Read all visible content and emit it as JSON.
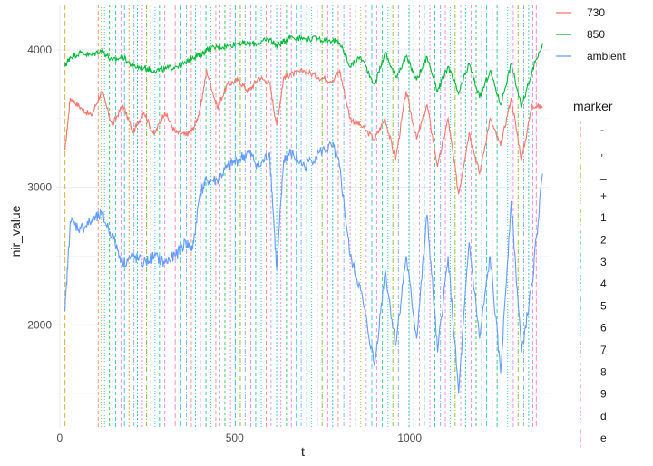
{
  "chart_data": {
    "type": "line",
    "title": "",
    "xlabel": "t",
    "ylabel": "nir_value",
    "xlim": [
      -10,
      1400
    ],
    "ylim": [
      1250,
      4330
    ],
    "x_ticks": [
      0,
      500,
      1000
    ],
    "x_tick_labels": [
      "0",
      "500",
      "1000"
    ],
    "y_ticks": [
      2000,
      3000,
      4000
    ],
    "y_tick_labels": [
      "2000",
      "3000",
      "4000"
    ],
    "grid": true,
    "legend_position": "right",
    "series": [
      {
        "name": "730",
        "color": "#F8766D",
        "x": [
          15,
          30,
          60,
          90,
          120,
          150,
          180,
          210,
          240,
          270,
          300,
          330,
          360,
          380,
          400,
          420,
          450,
          480,
          510,
          540,
          570,
          600,
          620,
          640,
          660,
          700,
          740,
          780,
          800,
          830,
          860,
          900,
          930,
          960,
          990,
          1020,
          1050,
          1080,
          1110,
          1140,
          1170,
          1200,
          1230,
          1260,
          1290,
          1320,
          1350,
          1380
        ],
        "values": [
          3270,
          3650,
          3580,
          3520,
          3700,
          3450,
          3600,
          3400,
          3550,
          3380,
          3550,
          3400,
          3380,
          3420,
          3550,
          3850,
          3580,
          3750,
          3780,
          3700,
          3800,
          3760,
          3450,
          3800,
          3820,
          3850,
          3800,
          3780,
          3850,
          3500,
          3450,
          3350,
          3500,
          3200,
          3700,
          3350,
          3600,
          3150,
          3500,
          2950,
          3400,
          3100,
          3500,
          3300,
          3650,
          3200,
          3600,
          3580
        ]
      },
      {
        "name": "850",
        "color": "#00BA38",
        "x": [
          15,
          30,
          60,
          90,
          120,
          150,
          180,
          210,
          240,
          270,
          300,
          330,
          360,
          380,
          400,
          420,
          450,
          480,
          510,
          540,
          570,
          600,
          620,
          640,
          660,
          700,
          740,
          780,
          800,
          830,
          860,
          900,
          930,
          960,
          990,
          1020,
          1050,
          1080,
          1110,
          1140,
          1170,
          1200,
          1230,
          1260,
          1290,
          1320,
          1350,
          1380
        ],
        "values": [
          3880,
          3950,
          3980,
          3960,
          4000,
          3920,
          3950,
          3880,
          3870,
          3850,
          3860,
          3880,
          3900,
          3950,
          3960,
          4000,
          4020,
          4030,
          4050,
          4040,
          4050,
          4080,
          4030,
          4060,
          4100,
          4080,
          4080,
          4070,
          4050,
          3880,
          3950,
          3750,
          3980,
          3800,
          3950,
          3780,
          3950,
          3700,
          3880,
          3680,
          3900,
          3650,
          3850,
          3600,
          3900,
          3580,
          3850,
          4050
        ]
      },
      {
        "name": "ambient",
        "color": "#619CFF",
        "x": [
          15,
          30,
          60,
          90,
          120,
          150,
          180,
          210,
          240,
          270,
          300,
          330,
          360,
          380,
          400,
          420,
          450,
          480,
          510,
          540,
          570,
          600,
          620,
          640,
          660,
          700,
          740,
          780,
          800,
          830,
          860,
          900,
          930,
          960,
          990,
          1020,
          1050,
          1080,
          1110,
          1140,
          1170,
          1200,
          1230,
          1260,
          1290,
          1320,
          1350,
          1380
        ],
        "values": [
          2100,
          2750,
          2700,
          2750,
          2800,
          2650,
          2450,
          2500,
          2450,
          2500,
          2450,
          2500,
          2600,
          2550,
          2950,
          3050,
          3050,
          3150,
          3200,
          3250,
          3150,
          3250,
          2400,
          3200,
          3250,
          3150,
          3250,
          3300,
          3150,
          2500,
          2250,
          1700,
          2400,
          1850,
          2500,
          1900,
          2800,
          1800,
          2500,
          1500,
          2600,
          1900,
          2500,
          1650,
          2900,
          1800,
          2300,
          3100
        ]
      }
    ],
    "markers": {
      "legend_title": "marker",
      "labels": [
        "-",
        ",",
        "_",
        "+",
        "1",
        "2",
        "3",
        "4",
        "5",
        "6",
        "7",
        "8",
        "9",
        "d",
        "e"
      ],
      "colors": [
        "#F8766D",
        "#E58700",
        "#C99800",
        "#A3A500",
        "#6BB100",
        "#00BA38",
        "#00BF7D",
        "#00C0AF",
        "#00BCD8",
        "#00B0F6",
        "#619CFF",
        "#B983FF",
        "#E76BF3",
        "#FD61D1",
        "#FF67A4"
      ],
      "events": [
        {
          "t": 15,
          "m": 2
        },
        {
          "t": 110,
          "m": 0
        },
        {
          "t": 118,
          "m": 3
        },
        {
          "t": 128,
          "m": 9
        },
        {
          "t": 142,
          "m": 5
        },
        {
          "t": 150,
          "m": 11
        },
        {
          "t": 160,
          "m": 6
        },
        {
          "t": 175,
          "m": 12
        },
        {
          "t": 185,
          "m": 8
        },
        {
          "t": 198,
          "m": 1
        },
        {
          "t": 212,
          "m": 10
        },
        {
          "t": 222,
          "m": 7
        },
        {
          "t": 236,
          "m": 13
        },
        {
          "t": 248,
          "m": 4
        },
        {
          "t": 260,
          "m": 11
        },
        {
          "t": 272,
          "m": 9
        },
        {
          "t": 285,
          "m": 6
        },
        {
          "t": 300,
          "m": 12
        },
        {
          "t": 318,
          "m": 5
        },
        {
          "t": 330,
          "m": 14
        },
        {
          "t": 346,
          "m": 8
        },
        {
          "t": 362,
          "m": 10
        },
        {
          "t": 376,
          "m": 0
        },
        {
          "t": 388,
          "m": 7
        },
        {
          "t": 402,
          "m": 12
        },
        {
          "t": 418,
          "m": 6
        },
        {
          "t": 432,
          "m": 9
        },
        {
          "t": 446,
          "m": 0
        },
        {
          "t": 458,
          "m": 11
        },
        {
          "t": 472,
          "m": 5
        },
        {
          "t": 488,
          "m": 13
        },
        {
          "t": 502,
          "m": 8
        },
        {
          "t": 516,
          "m": 4
        },
        {
          "t": 530,
          "m": 10
        },
        {
          "t": 546,
          "m": 12
        },
        {
          "t": 560,
          "m": 6
        },
        {
          "t": 576,
          "m": 9
        },
        {
          "t": 590,
          "m": 0
        },
        {
          "t": 604,
          "m": 11
        },
        {
          "t": 620,
          "m": 7
        },
        {
          "t": 632,
          "m": 13
        },
        {
          "t": 648,
          "m": 5
        },
        {
          "t": 662,
          "m": 12
        },
        {
          "t": 676,
          "m": 8
        },
        {
          "t": 690,
          "m": 10
        },
        {
          "t": 706,
          "m": 6
        },
        {
          "t": 720,
          "m": 9
        },
        {
          "t": 736,
          "m": 11
        },
        {
          "t": 750,
          "m": 4
        },
        {
          "t": 766,
          "m": 12
        },
        {
          "t": 780,
          "m": 7
        },
        {
          "t": 796,
          "m": 0
        },
        {
          "t": 812,
          "m": 10
        },
        {
          "t": 830,
          "m": 13
        },
        {
          "t": 846,
          "m": 5
        },
        {
          "t": 860,
          "m": 3
        },
        {
          "t": 876,
          "m": 11
        },
        {
          "t": 892,
          "m": 8
        },
        {
          "t": 906,
          "m": 12
        },
        {
          "t": 922,
          "m": 6
        },
        {
          "t": 938,
          "m": 9
        },
        {
          "t": 952,
          "m": 4
        },
        {
          "t": 968,
          "m": 10
        },
        {
          "t": 984,
          "m": 12
        },
        {
          "t": 998,
          "m": 7
        },
        {
          "t": 1012,
          "m": 5
        },
        {
          "t": 1028,
          "m": 11
        },
        {
          "t": 1042,
          "m": 8
        },
        {
          "t": 1058,
          "m": 13
        },
        {
          "t": 1072,
          "m": 6
        },
        {
          "t": 1088,
          "m": 10
        },
        {
          "t": 1102,
          "m": 12
        },
        {
          "t": 1116,
          "m": 9
        },
        {
          "t": 1130,
          "m": 4
        },
        {
          "t": 1146,
          "m": 11
        },
        {
          "t": 1160,
          "m": 7
        },
        {
          "t": 1176,
          "m": 12
        },
        {
          "t": 1190,
          "m": 5
        },
        {
          "t": 1206,
          "m": 10
        },
        {
          "t": 1220,
          "m": 8
        },
        {
          "t": 1236,
          "m": 13
        },
        {
          "t": 1250,
          "m": 6
        },
        {
          "t": 1264,
          "m": 11
        },
        {
          "t": 1280,
          "m": 9
        },
        {
          "t": 1296,
          "m": 12
        },
        {
          "t": 1310,
          "m": 4
        },
        {
          "t": 1326,
          "m": 10
        },
        {
          "t": 1340,
          "m": 7
        },
        {
          "t": 1352,
          "m": 12
        },
        {
          "t": 1362,
          "m": 14
        }
      ]
    }
  }
}
